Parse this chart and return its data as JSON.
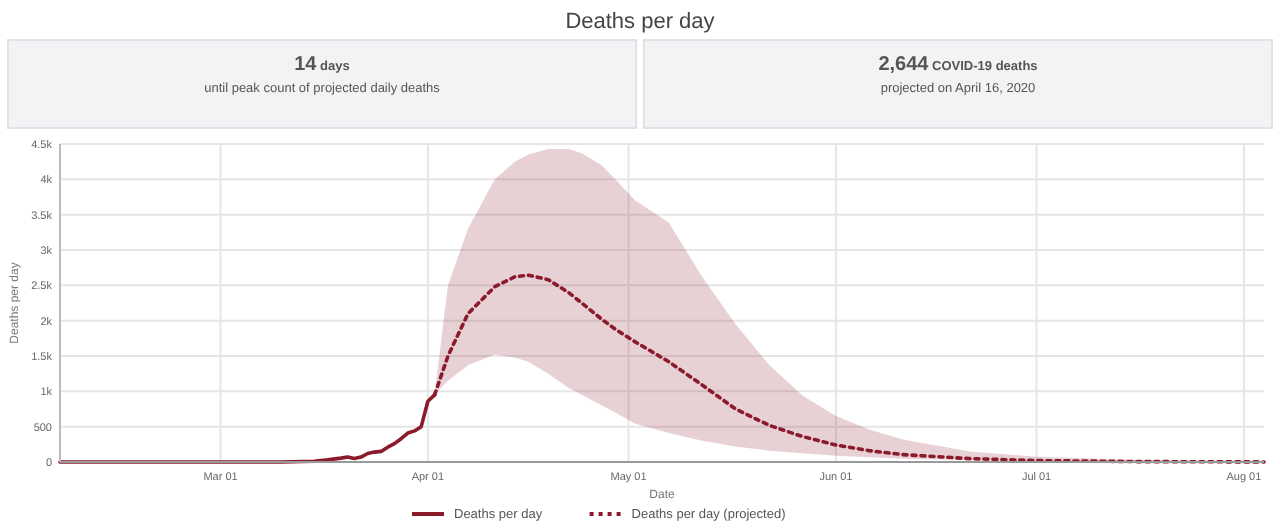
{
  "chart_data": {
    "type": "line",
    "title": "Deaths per day",
    "xlabel": "Date",
    "ylabel": "Deaths per day",
    "annotations": [
      "14 days",
      "until peak count of projected daily deaths",
      "2,644 COVID-19 deaths",
      "projected on April 16, 2020"
    ],
    "xlim": [
      "2020-02-06",
      "2020-08-04"
    ],
    "xticks": [
      {
        "value": "2020-03-01",
        "label": "Mar 01"
      },
      {
        "value": "2020-04-01",
        "label": "Apr 01"
      },
      {
        "value": "2020-05-01",
        "label": "May 01"
      },
      {
        "value": "2020-06-01",
        "label": "Jun 01"
      },
      {
        "value": "2020-07-01",
        "label": "Jul 01"
      },
      {
        "value": "2020-08-01",
        "label": "Aug 01"
      }
    ],
    "ylim": [
      0,
      4500
    ],
    "yticks": [
      0,
      500,
      {
        "value": 1000,
        "label": "1k"
      },
      {
        "value": 1500,
        "label": "1.5k"
      },
      {
        "value": 2000,
        "label": "2k"
      },
      {
        "value": 2500,
        "label": "2.5k"
      },
      {
        "value": 3000,
        "label": "3k"
      },
      {
        "value": 3500,
        "label": "3.5k"
      },
      {
        "value": 4000,
        "label": "4k"
      },
      {
        "value": 4500,
        "label": "4.5k"
      }
    ],
    "grid": true,
    "legend": "bottom",
    "marker": "none",
    "series": [
      {
        "name": "Deaths per day",
        "color": "#8b1a2b",
        "line_style": "solid",
        "x": [
          "2020-02-06",
          "2020-03-01",
          "2020-03-10",
          "2020-03-15",
          "2020-03-17",
          "2020-03-19",
          "2020-03-20",
          "2020-03-21",
          "2020-03-22",
          "2020-03-23",
          "2020-03-24",
          "2020-03-25",
          "2020-03-26",
          "2020-03-27",
          "2020-03-28",
          "2020-03-29",
          "2020-03-30",
          "2020-03-31",
          "2020-04-01",
          "2020-04-02"
        ],
        "values": [
          0,
          0,
          1,
          10,
          30,
          55,
          70,
          50,
          70,
          120,
          140,
          150,
          210,
          260,
          330,
          410,
          440,
          500,
          860,
          950
        ]
      },
      {
        "name": "Deaths per day (projected)",
        "color": "#8b1a2b",
        "line_style": "dotted",
        "x": [
          "2020-04-02",
          "2020-04-04",
          "2020-04-07",
          "2020-04-11",
          "2020-04-14",
          "2020-04-16",
          "2020-04-19",
          "2020-04-22",
          "2020-04-24",
          "2020-04-27",
          "2020-04-29",
          "2020-05-02",
          "2020-05-07",
          "2020-05-12",
          "2020-05-17",
          "2020-05-22",
          "2020-05-27",
          "2020-06-01",
          "2020-06-06",
          "2020-06-11",
          "2020-06-21",
          "2020-07-01",
          "2020-07-16",
          "2020-08-04"
        ],
        "values": [
          950,
          1500,
          2100,
          2480,
          2620,
          2644,
          2580,
          2400,
          2250,
          2020,
          1880,
          1700,
          1420,
          1090,
          750,
          520,
          360,
          240,
          160,
          105,
          48,
          20,
          6,
          1
        ],
        "lower": [
          950,
          1150,
          1370,
          1520,
          1480,
          1420,
          1250,
          1050,
          950,
          800,
          700,
          540,
          410,
          300,
          220,
          160,
          125,
          90,
          67,
          45,
          25,
          10,
          3,
          0
        ],
        "upper": [
          950,
          2500,
          3300,
          4000,
          4250,
          4350,
          4430,
          4430,
          4370,
          4200,
          4000,
          3700,
          3390,
          2620,
          1950,
          1375,
          940,
          650,
          460,
          320,
          150,
          75,
          30,
          5
        ]
      }
    ]
  }
}
